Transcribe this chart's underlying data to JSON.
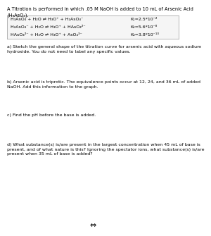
{
  "title_line1": "A Titration is performed in which .05 M NaOH is added to 10 mL of Arsenic Acid",
  "title_line2": "(H₃AsO₄).",
  "box_reactions": [
    "H₃AsO₄ + H₂O ⇌ H₃O⁺ + H₂AsO₄⁻",
    "H₂AsO₄⁻ + H₂O ⇌ H₃O⁺ + HAsO₄²⁻",
    "HAsO₄²⁻ + H₂O ⇌ H₃O⁺ + AsO₄³⁻"
  ],
  "box_ka": [
    "K₁=2.5*10⁻²",
    "K₂=5.6*10⁻⁸",
    "K₃=3.8*10⁻¹³"
  ],
  "q_a": "a) Sketch the general shape of the titration curve for arsenic acid with aqueous sodium\nhydroxide. You do not need to label any specific values.",
  "q_b": "b) Arsenic acid is triprotic. The equivalence points occur at 12, 24, and 36 mL of added\nNaOH. Add this information to the graph.",
  "q_c": "c) Find the pH before the base is added.",
  "q_d": "d) What substance(s) is/are present in the largest concentration when 45 mL of base is\npresent, and of what nature is this? Ignoring the spectator ions, what substance(s) is/are\npresent when 35 mL of base is added?",
  "footer": "⇔",
  "bg_color": "#ffffff",
  "text_color": "#000000",
  "box_bg": "#f5f5f5",
  "font_size_main": 4.8,
  "font_size_body": 4.5,
  "font_size_footer": 8.0
}
